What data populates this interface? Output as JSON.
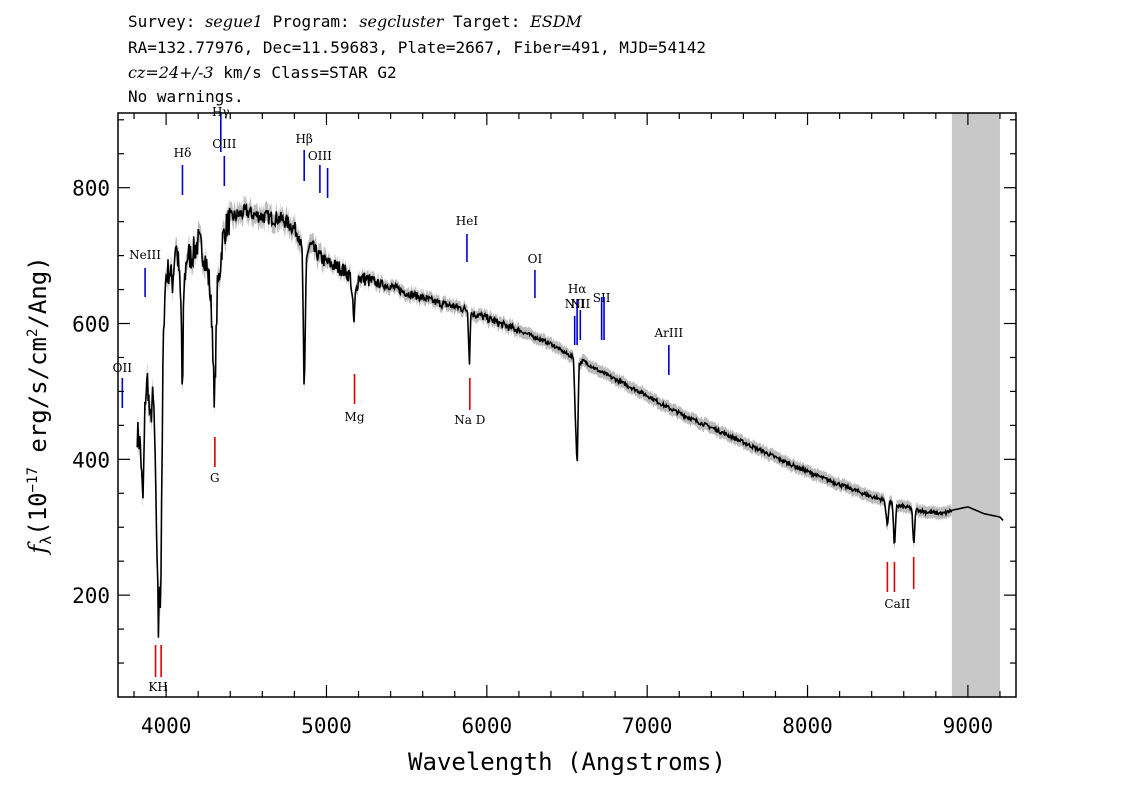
{
  "header": {
    "line1": {
      "survey_label": "Survey:",
      "survey": "segue1",
      "program_label": "Program:",
      "program": "segcluster",
      "target_label": "Target:",
      "target": "ESDM"
    },
    "line2": "RA=132.77976, Dec=11.59683, Plate=2667, Fiber=491, MJD=54142",
    "line3": {
      "cz": "cz=24+/-3",
      "rest": "km/s Class=STAR G2"
    },
    "line4": "No warnings."
  },
  "colors": {
    "emission": "#0000cc",
    "absorption": "#dd0000",
    "spectrum": "#000000",
    "error_band": "#bbbbbb",
    "masked_region": "#c8c8c8"
  },
  "chart_data": {
    "type": "line",
    "xlabel": "Wavelength (Angstroms)",
    "ylabel": "f_λ (10^-17 erg/s/cm^2/Ang)",
    "ylabel_parts": {
      "f": "f",
      "sub": "λ",
      "pre": "(10",
      "exp": "−17",
      "mid": " erg/s/cm",
      "exp2": "2",
      "post": "/Ang)"
    },
    "xlim": [
      3700,
      9300
    ],
    "ylim": [
      50,
      910
    ],
    "x_ticks": [
      4000,
      5000,
      6000,
      7000,
      8000,
      9000
    ],
    "x_tick_labels": [
      "4000",
      "5000",
      "6000",
      "7000",
      "8000",
      "9000"
    ],
    "y_ticks": [
      200,
      400,
      600,
      800
    ],
    "y_tick_labels": [
      "200",
      "400",
      "600",
      "800"
    ],
    "masked_region": [
      8900,
      9200
    ],
    "grid": false,
    "series": [
      {
        "x": [
          3820,
          3840,
          3855,
          3870,
          3885,
          3900,
          3915,
          3925,
          3935,
          3945,
          3952,
          3958,
          3965,
          3972,
          3980,
          3990,
          4000,
          4020,
          4040,
          4060,
          4080,
          4095,
          4102,
          4110,
          4130,
          4160,
          4200,
          4240,
          4270,
          4290,
          4300,
          4310,
          4320,
          4340,
          4350,
          4370,
          4400,
          4450,
          4500,
          4550,
          4600,
          4650,
          4700,
          4750,
          4800,
          4830,
          4850,
          4861,
          4875,
          4900,
          4950,
          5000,
          5050,
          5100,
          5150,
          5172,
          5180,
          5200,
          5250,
          5300,
          5400,
          5500,
          5600,
          5700,
          5800,
          5880,
          5892,
          5900,
          5950,
          6000,
          6100,
          6200,
          6300,
          6400,
          6500,
          6540,
          6563,
          6575,
          6600,
          6700,
          6800,
          6900,
          7000,
          7100,
          7200,
          7300,
          7400,
          7500,
          7600,
          7700,
          7800,
          7900,
          8000,
          8100,
          8200,
          8300,
          8400,
          8480,
          8498,
          8510,
          8530,
          8542,
          8555,
          8600,
          8650,
          8662,
          8675,
          8750,
          8850,
          8900,
          9000,
          9100,
          9200,
          9220
        ],
        "y": [
          440,
          420,
          330,
          490,
          520,
          450,
          490,
          470,
          350,
          250,
          145,
          240,
          175,
          320,
          530,
          640,
          670,
          680,
          660,
          720,
          680,
          610,
          470,
          650,
          700,
          700,
          720,
          700,
          660,
          590,
          470,
          560,
          650,
          690,
          720,
          740,
          755,
          760,
          765,
          760,
          758,
          756,
          755,
          750,
          740,
          730,
          700,
          480,
          700,
          715,
          700,
          690,
          685,
          680,
          670,
          600,
          640,
          668,
          665,
          660,
          655,
          645,
          638,
          630,
          625,
          620,
          540,
          615,
          612,
          608,
          598,
          590,
          580,
          570,
          555,
          550,
          385,
          540,
          545,
          530,
          518,
          506,
          494,
          480,
          468,
          457,
          447,
          436,
          425,
          414,
          403,
          392,
          382,
          372,
          363,
          354,
          345,
          340,
          300,
          338,
          335,
          265,
          332,
          330,
          328,
          270,
          326,
          322,
          320,
          325,
          330,
          320,
          315,
          310
        ]
      }
    ],
    "emission_lines": [
      {
        "label": "OII",
        "wave": 3727
      },
      {
        "label": "NeIII",
        "wave": 3869
      },
      {
        "label": "Hδ",
        "wave": 4102
      },
      {
        "label": "Hγ",
        "wave": 4341
      },
      {
        "label": "OIII",
        "wave": 4363
      },
      {
        "label": "Hβ",
        "wave": 4861
      },
      {
        "label": "OIII",
        "wave": 4959
      },
      {
        "label": "",
        "wave": 5007
      },
      {
        "label": "HeI",
        "wave": 5876
      },
      {
        "label": "OI",
        "wave": 6300
      },
      {
        "label": "NII",
        "wave": 6548
      },
      {
        "label": "Hα",
        "wave": 6563
      },
      {
        "label": "NII",
        "wave": 6583
      },
      {
        "label": "SII",
        "wave": 6716
      },
      {
        "label": "",
        "wave": 6731
      },
      {
        "label": "ArIII",
        "wave": 7135
      }
    ],
    "absorption_lines": [
      {
        "label": "K",
        "wave": 3934
      },
      {
        "label": "H",
        "wave": 3969
      },
      {
        "label": "G",
        "wave": 4304
      },
      {
        "label": "Mg",
        "wave": 5175
      },
      {
        "label": "Na D",
        "wave": 5894
      },
      {
        "label": "CaII",
        "wave": 8498
      },
      {
        "label": "",
        "wave": 8542
      },
      {
        "label": "",
        "wave": 8662
      }
    ]
  }
}
